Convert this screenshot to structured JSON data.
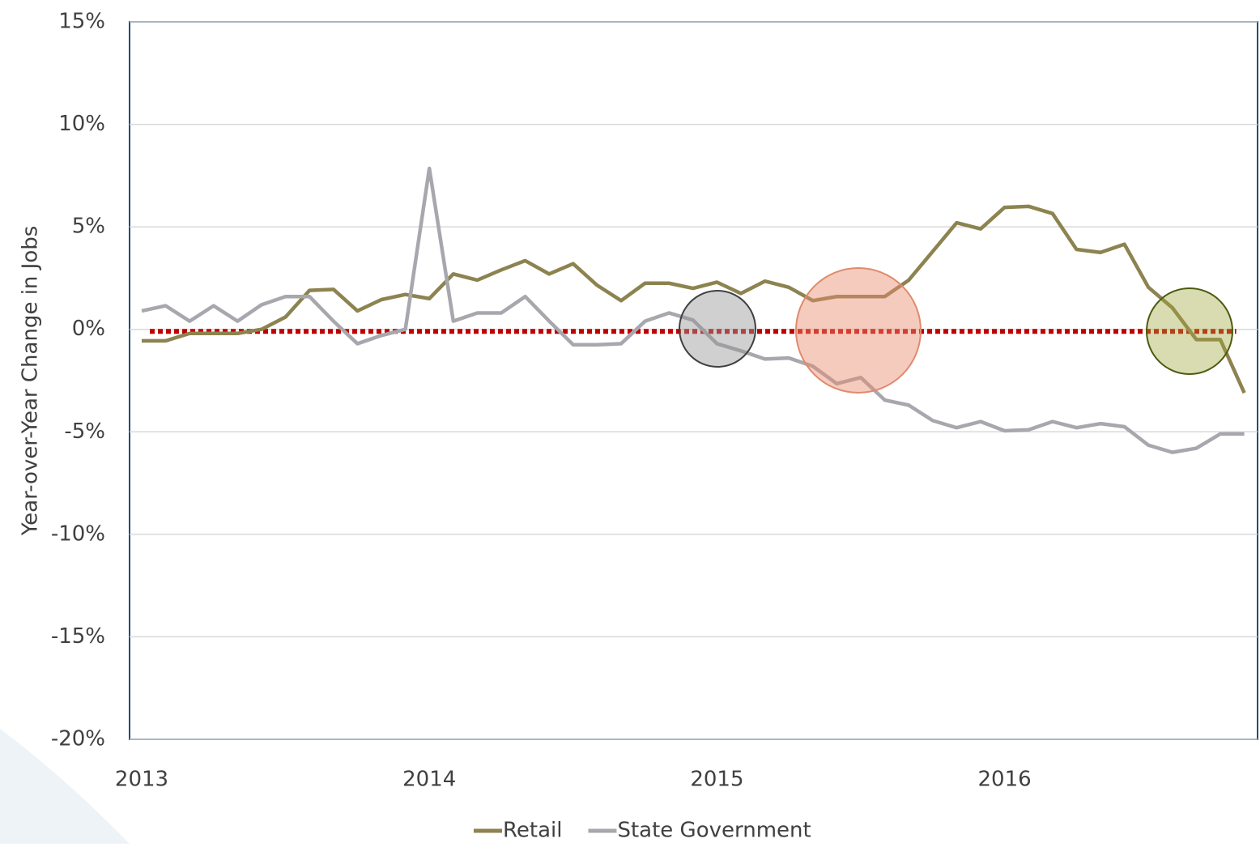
{
  "chart_data": {
    "type": "line",
    "y_label": "Year-over-Year Change in Jobs",
    "categories": [
      "2013",
      null,
      null,
      null,
      null,
      null,
      null,
      null,
      null,
      null,
      null,
      null,
      "2014",
      null,
      null,
      null,
      null,
      null,
      null,
      null,
      null,
      null,
      null,
      null,
      "2015",
      null,
      null,
      null,
      null,
      null,
      null,
      null,
      null,
      null,
      null,
      null,
      "2016",
      null,
      null,
      null,
      null,
      null,
      null,
      null,
      null,
      null,
      null
    ],
    "series": [
      {
        "name": "Retail",
        "color": "#8c8350",
        "values": [
          -0.56,
          -0.56,
          -0.2,
          -0.2,
          -0.2,
          0.0,
          0.6,
          1.9,
          1.95,
          0.9,
          1.45,
          1.7,
          1.5,
          2.7,
          2.4,
          2.9,
          3.35,
          2.7,
          3.2,
          2.15,
          1.4,
          2.25,
          2.25,
          2.0,
          2.3,
          1.75,
          2.35,
          2.05,
          1.4,
          1.6,
          1.6,
          1.6,
          2.4,
          3.8,
          5.2,
          4.9,
          5.95,
          6.0,
          5.65,
          3.9,
          3.75,
          4.15,
          2.05,
          1.05,
          -0.5,
          -0.5,
          -3.1
        ]
      },
      {
        "name": "State Government",
        "color": "#a7a7ae",
        "values": [
          0.9,
          1.15,
          0.4,
          1.15,
          0.4,
          1.2,
          1.6,
          1.6,
          0.4,
          -0.7,
          -0.3,
          0.0,
          7.85,
          0.4,
          0.8,
          0.8,
          1.6,
          0.4,
          -0.75,
          -0.75,
          -0.7,
          0.4,
          0.8,
          0.45,
          -0.7,
          -1.05,
          -1.45,
          -1.4,
          -1.8,
          -2.65,
          -2.35,
          -3.45,
          -3.7,
          -4.45,
          -4.8,
          -4.5,
          -4.95,
          -4.9,
          -4.5,
          -4.8,
          -4.6,
          -4.75,
          -5.65,
          -6.0,
          -5.8,
          -5.1,
          -5.1
        ]
      }
    ],
    "reference_line": {
      "value": -0.1,
      "color": "#c00000"
    },
    "ylim": [
      -20,
      15
    ],
    "yticks": [
      {
        "value": -20,
        "label": "-20%"
      },
      {
        "value": -15,
        "label": "-15%"
      },
      {
        "value": -10,
        "label": "-10%"
      },
      {
        "value": -5,
        "label": "-5%"
      },
      {
        "value": 0,
        "label": "0%"
      },
      {
        "value": 5,
        "label": "5%"
      },
      {
        "value": 10,
        "label": "10%"
      },
      {
        "value": 15,
        "label": "15%"
      }
    ],
    "grid": true,
    "legend": "bottom"
  }
}
